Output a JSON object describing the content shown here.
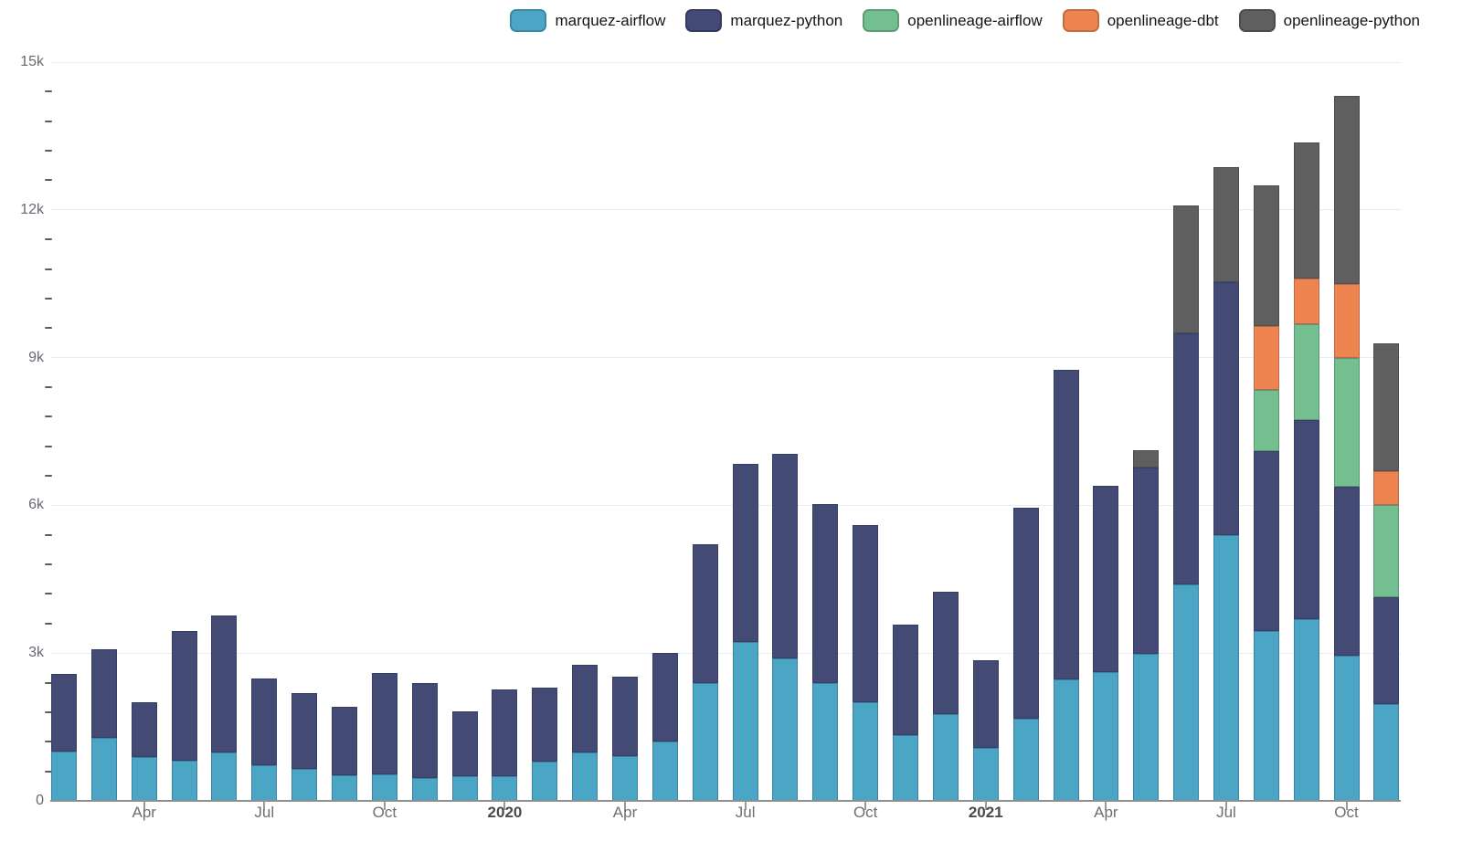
{
  "chart_data": {
    "type": "bar",
    "stacked": true,
    "title": "",
    "xlabel": "",
    "ylabel": "",
    "ylim": [
      0,
      15000
    ],
    "grid": "horizontal",
    "legend_position": "top-right",
    "x": [
      "2019-02",
      "2019-03",
      "2019-04",
      "2019-05",
      "2019-06",
      "2019-07",
      "2019-08",
      "2019-09",
      "2019-10",
      "2019-11",
      "2019-12",
      "2020-01",
      "2020-02",
      "2020-03",
      "2020-04",
      "2020-05",
      "2020-06",
      "2020-07",
      "2020-08",
      "2020-09",
      "2020-10",
      "2020-11",
      "2020-12",
      "2021-01",
      "2021-02",
      "2021-03",
      "2021-04",
      "2021-05",
      "2021-06",
      "2021-07",
      "2021-08",
      "2021-09",
      "2021-10",
      "2021-11"
    ],
    "series": [
      {
        "name": "marquez-airflow",
        "color": "#4ba6c5",
        "values": [
          1010,
          1280,
          890,
          810,
          980,
          730,
          650,
          510,
          545,
          465,
          495,
          500,
          790,
          980,
          900,
          1210,
          2390,
          3220,
          2890,
          2400,
          2010,
          1340,
          1770,
          1070,
          1670,
          2460,
          2610,
          2990,
          4390,
          5400,
          3450,
          3690,
          2950,
          1970
        ]
      },
      {
        "name": "marquez-python",
        "color": "#434a74",
        "values": [
          1570,
          1800,
          1120,
          2640,
          2790,
          1750,
          1540,
          1400,
          2060,
          1925,
          1320,
          1760,
          1500,
          1790,
          1630,
          1790,
          2820,
          3630,
          4150,
          3630,
          3590,
          2230,
          2480,
          1780,
          4280,
          6300,
          3790,
          3780,
          5100,
          5130,
          3650,
          4040,
          3420,
          2170
        ]
      },
      {
        "name": "openlineage-airflow",
        "color": "#74bf90",
        "values": [
          0,
          0,
          0,
          0,
          0,
          0,
          0,
          0,
          0,
          0,
          0,
          0,
          0,
          0,
          0,
          0,
          0,
          0,
          0,
          0,
          0,
          0,
          0,
          0,
          0,
          0,
          0,
          0,
          0,
          0,
          1250,
          1950,
          2620,
          1870
        ]
      },
      {
        "name": "openlineage-dbt",
        "color": "#ee8450",
        "values": [
          0,
          0,
          0,
          0,
          0,
          0,
          0,
          0,
          0,
          0,
          0,
          0,
          0,
          0,
          0,
          0,
          0,
          0,
          0,
          0,
          0,
          0,
          0,
          0,
          0,
          0,
          0,
          0,
          0,
          0,
          1300,
          930,
          1500,
          690
        ]
      },
      {
        "name": "openlineage-python",
        "color": "#5f5f5f",
        "values": [
          0,
          0,
          0,
          0,
          0,
          0,
          0,
          0,
          0,
          0,
          0,
          0,
          0,
          0,
          0,
          0,
          0,
          0,
          0,
          0,
          0,
          0,
          0,
          0,
          0,
          0,
          0,
          350,
          2600,
          2330,
          2840,
          2760,
          3830,
          2580
        ]
      }
    ],
    "yticks": [
      {
        "value": 0,
        "label": "0"
      },
      {
        "value": 3000,
        "label": "3k"
      },
      {
        "value": 6000,
        "label": "6k"
      },
      {
        "value": 9000,
        "label": "9k"
      },
      {
        "value": 12000,
        "label": "12k"
      },
      {
        "value": 15000,
        "label": "15k"
      }
    ],
    "minor_tick_step": 600,
    "xticks": [
      {
        "index": 2,
        "label": "Apr",
        "bold": false
      },
      {
        "index": 5,
        "label": "Jul",
        "bold": false
      },
      {
        "index": 8,
        "label": "Oct",
        "bold": false
      },
      {
        "index": 11,
        "label": "2020",
        "bold": true
      },
      {
        "index": 14,
        "label": "Apr",
        "bold": false
      },
      {
        "index": 17,
        "label": "Jul",
        "bold": false
      },
      {
        "index": 20,
        "label": "Oct",
        "bold": false
      },
      {
        "index": 23,
        "label": "2021",
        "bold": true
      },
      {
        "index": 26,
        "label": "Apr",
        "bold": false
      },
      {
        "index": 29,
        "label": "Jul",
        "bold": false
      },
      {
        "index": 32,
        "label": "Oct",
        "bold": false
      }
    ],
    "colors": {
      "background": "#ffffff",
      "gridline": "#e8ebf4",
      "axis_line": "#8f8f8f",
      "tick_label": "#6f6f6f",
      "year_label": "#4a4a4a",
      "legend_text": "#141414"
    }
  }
}
